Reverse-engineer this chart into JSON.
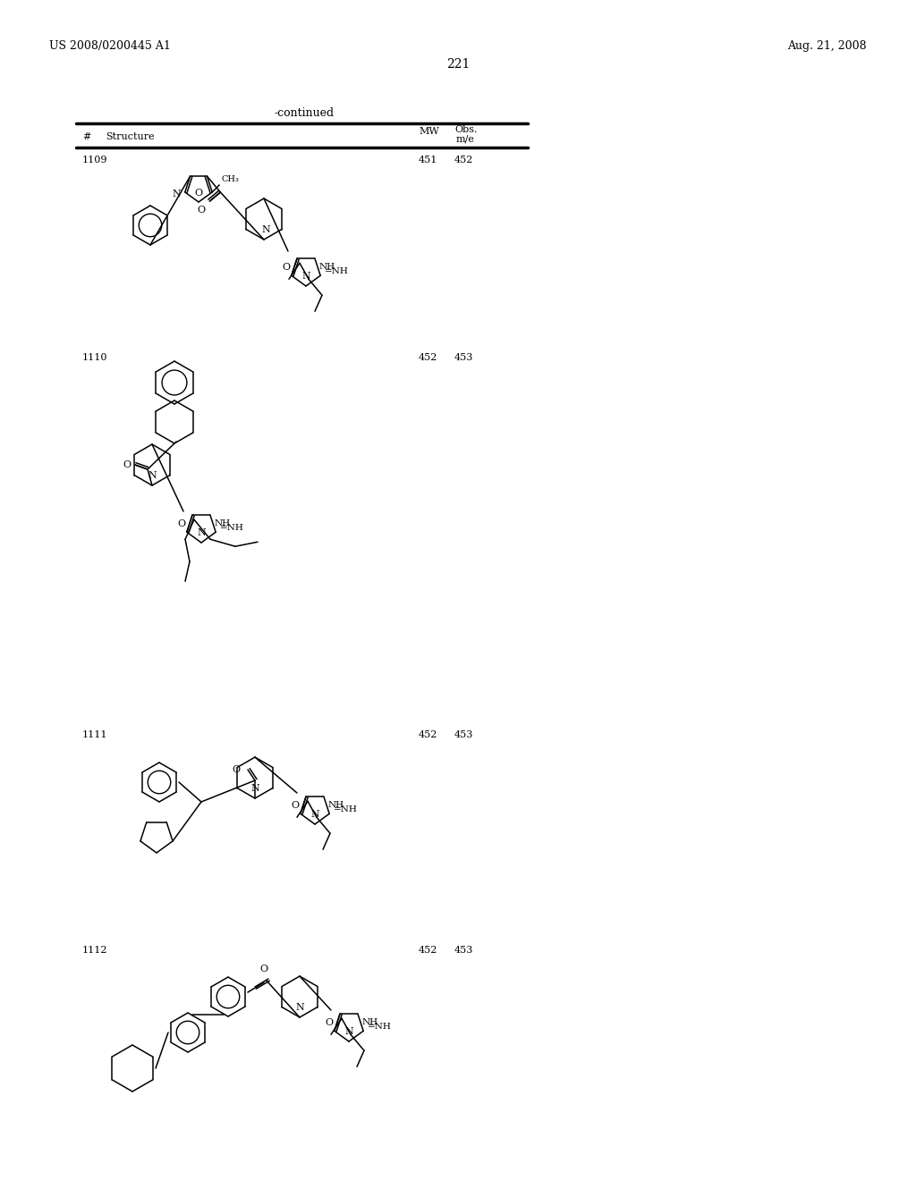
{
  "page_left_header": "US 2008/0200445 A1",
  "page_right_header": "Aug. 21, 2008",
  "page_number": "221",
  "table_title": "-continued",
  "col_headers": [
    "#",
    "Structure",
    "MW",
    "Obs.\nm/e"
  ],
  "compounds": [
    {
      "id": "1109",
      "mw": "451",
      "obs": "452"
    },
    {
      "id": "1110",
      "mw": "452",
      "obs": "453"
    },
    {
      "id": "1111",
      "mw": "452",
      "obs": "453"
    },
    {
      "id": "1112",
      "mw": "452",
      "obs": "453"
    }
  ],
  "bg_color": "#ffffff",
  "text_color": "#000000",
  "font_size_header": 9,
  "font_size_body": 8,
  "font_size_page": 9
}
